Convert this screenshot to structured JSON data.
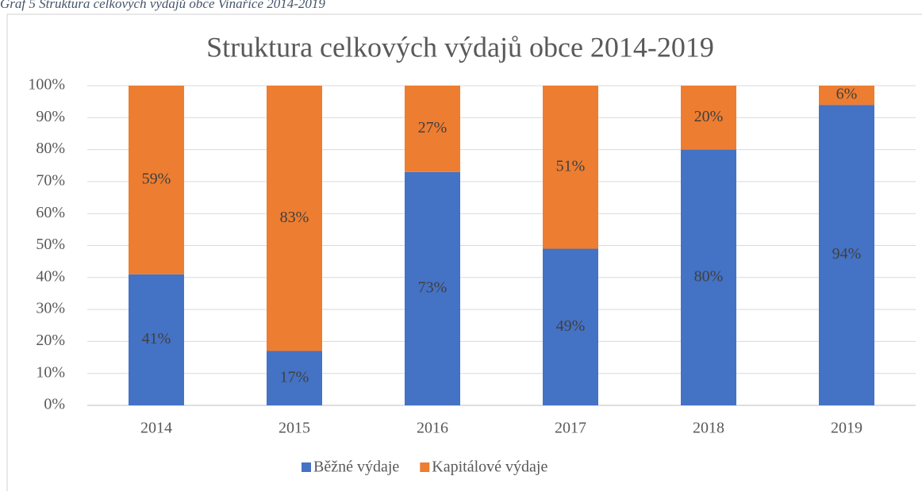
{
  "caption": "Graf 5 Struktura celkových výdajů obce Vinařice 2014-2019",
  "chart_data": {
    "type": "stacked_bar",
    "title": "Struktura celkových výdajů obce 2014-2019",
    "categories": [
      "2014",
      "2015",
      "2016",
      "2017",
      "2018",
      "2019"
    ],
    "series": [
      {
        "name": "Běžné výdaje",
        "color": "#4472c4",
        "values": [
          41,
          17,
          73,
          49,
          80,
          94
        ],
        "value_labels": [
          "41%",
          "17%",
          "73%",
          "49%",
          "80%",
          "94%"
        ]
      },
      {
        "name": "Kapitálové výdaje",
        "color": "#ed7d31",
        "values": [
          59,
          83,
          27,
          51,
          20,
          6
        ],
        "value_labels": [
          "59%",
          "83%",
          "27%",
          "51%",
          "20%",
          "6%"
        ]
      }
    ],
    "ylim": [
      0,
      100
    ],
    "yticks": [
      {
        "value": 0,
        "label": "0%"
      },
      {
        "value": 10,
        "label": "10%"
      },
      {
        "value": 20,
        "label": "20%"
      },
      {
        "value": 30,
        "label": "30%"
      },
      {
        "value": 40,
        "label": "40%"
      },
      {
        "value": 50,
        "label": "50%"
      },
      {
        "value": 60,
        "label": "60%"
      },
      {
        "value": 70,
        "label": "70%"
      },
      {
        "value": 80,
        "label": "80%"
      },
      {
        "value": 90,
        "label": "90%"
      },
      {
        "value": 100,
        "label": "100%"
      }
    ],
    "grid": true,
    "legend": "bottom"
  }
}
